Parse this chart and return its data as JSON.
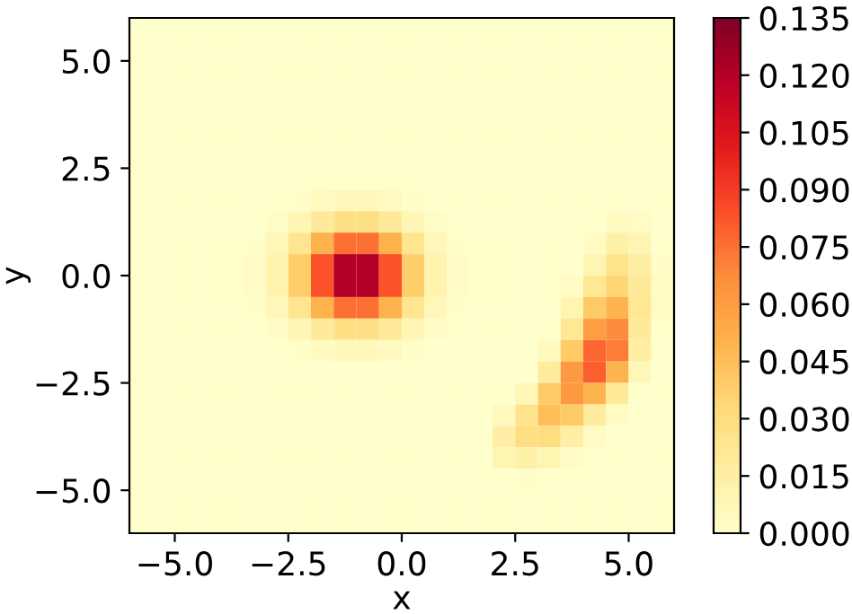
{
  "chart_data": {
    "type": "heatmap",
    "xlabel": "x",
    "ylabel": "y",
    "xlim": [
      -6,
      6
    ],
    "ylim": [
      -6,
      6
    ],
    "xticks": [
      {
        "value": -5,
        "label": "−5.0"
      },
      {
        "value": -2.5,
        "label": "−2.5"
      },
      {
        "value": 0,
        "label": "0.0"
      },
      {
        "value": 2.5,
        "label": "2.5"
      },
      {
        "value": 5,
        "label": "5.0"
      }
    ],
    "yticks": [
      {
        "value": -5,
        "label": "−5.0"
      },
      {
        "value": -2.5,
        "label": "−2.5"
      },
      {
        "value": 0,
        "label": "0.0"
      },
      {
        "value": 2.5,
        "label": "2.5"
      },
      {
        "value": 5,
        "label": "5.0"
      }
    ],
    "clim": [
      0,
      0.135
    ],
    "cticks": [
      {
        "value": 0,
        "label": "0.000"
      },
      {
        "value": 0.015,
        "label": "0.015"
      },
      {
        "value": 0.03,
        "label": "0.030"
      },
      {
        "value": 0.045,
        "label": "0.045"
      },
      {
        "value": 0.06,
        "label": "0.060"
      },
      {
        "value": 0.075,
        "label": "0.075"
      },
      {
        "value": 0.09,
        "label": "0.090"
      },
      {
        "value": 0.105,
        "label": "0.105"
      },
      {
        "value": 0.12,
        "label": "0.120"
      },
      {
        "value": 0.135,
        "label": "0.135"
      }
    ],
    "cells": [
      [
        0,
        0,
        0,
        0,
        0,
        0,
        0,
        0,
        0,
        0,
        0,
        0,
        0,
        0,
        0,
        0,
        0,
        0,
        0,
        0,
        0,
        0,
        0,
        0
      ],
      [
        0,
        0,
        0,
        0,
        0,
        0,
        0,
        0,
        0,
        0,
        0,
        0,
        0,
        0,
        0,
        0,
        0,
        0,
        0,
        0,
        0,
        0,
        0,
        0
      ],
      [
        0,
        0,
        0,
        0,
        0,
        0,
        0,
        0,
        0,
        0,
        0,
        0,
        0,
        0,
        0,
        0,
        0,
        0,
        0,
        0,
        0,
        0,
        0,
        0
      ],
      [
        0,
        0,
        0,
        0,
        0,
        0,
        0,
        0,
        0,
        0,
        0,
        0,
        0,
        0,
        0,
        0,
        0,
        0,
        0,
        0,
        0,
        0,
        0,
        0
      ],
      [
        0,
        0,
        0,
        0,
        0,
        0,
        0,
        0,
        0,
        0,
        0,
        0,
        0,
        0,
        0,
        0,
        0,
        0,
        0,
        0,
        0,
        0,
        0,
        0
      ],
      [
        0,
        0,
        0,
        0,
        0,
        0,
        0,
        0,
        0,
        0,
        0,
        0,
        0,
        0,
        0,
        0,
        0,
        0,
        0,
        0,
        0,
        0,
        0,
        0
      ],
      [
        0,
        0,
        0,
        0,
        0,
        0,
        0,
        0,
        0,
        0,
        0,
        0,
        0,
        0,
        0,
        0,
        0,
        0,
        0,
        0,
        0,
        0,
        0,
        0
      ],
      [
        0,
        0,
        0,
        0,
        0,
        0,
        0,
        0,
        0,
        0,
        0,
        0,
        0,
        0,
        0,
        0,
        0,
        0,
        0,
        0,
        0,
        0,
        0,
        0
      ],
      [
        0,
        0,
        0,
        0,
        0,
        0,
        0,
        0.002,
        0.005,
        0.007,
        0.007,
        0.005,
        0.002,
        0,
        0,
        0,
        0,
        0,
        0,
        0,
        0,
        0,
        0,
        0
      ],
      [
        0,
        0,
        0,
        0,
        0,
        0,
        0.003,
        0.009,
        0.019,
        0.028,
        0.028,
        0.019,
        0.009,
        0.003,
        0,
        0,
        0,
        0,
        0,
        0,
        0,
        0.005,
        0.004,
        0
      ],
      [
        0,
        0,
        0,
        0,
        0,
        0.002,
        0.008,
        0.024,
        0.051,
        0.075,
        0.075,
        0.051,
        0.024,
        0.008,
        0.002,
        0,
        0,
        0,
        0,
        0,
        0.004,
        0.014,
        0.01,
        0
      ],
      [
        0,
        0,
        0,
        0,
        0,
        0.003,
        0.012,
        0.039,
        0.083,
        0.121,
        0.121,
        0.083,
        0.039,
        0.012,
        0.003,
        0,
        0,
        0,
        0,
        0,
        0.01,
        0.025,
        0.016,
        0.003
      ],
      [
        0,
        0,
        0,
        0,
        0,
        0.003,
        0.012,
        0.039,
        0.083,
        0.121,
        0.121,
        0.083,
        0.039,
        0.012,
        0.003,
        0,
        0,
        0,
        0,
        0.004,
        0.022,
        0.035,
        0.02,
        0.004
      ],
      [
        0,
        0,
        0,
        0,
        0,
        0.002,
        0.008,
        0.024,
        0.051,
        0.075,
        0.075,
        0.051,
        0.024,
        0.008,
        0.002,
        0,
        0,
        0,
        0,
        0.01,
        0.04,
        0.05,
        0.022,
        0.004
      ],
      [
        0,
        0,
        0,
        0,
        0,
        0,
        0.003,
        0.009,
        0.019,
        0.028,
        0.028,
        0.019,
        0.009,
        0.003,
        0,
        0,
        0,
        0,
        0,
        0.022,
        0.06,
        0.068,
        0.02,
        0
      ],
      [
        0,
        0,
        0,
        0,
        0,
        0,
        0,
        0.002,
        0.005,
        0.007,
        0.007,
        0.005,
        0.002,
        0,
        0,
        0,
        0,
        0,
        0.006,
        0.04,
        0.078,
        0.072,
        0.016,
        0
      ],
      [
        0,
        0,
        0,
        0,
        0,
        0,
        0,
        0,
        0,
        0,
        0,
        0,
        0,
        0,
        0,
        0,
        0,
        0,
        0.018,
        0.062,
        0.08,
        0.05,
        0.008,
        0
      ],
      [
        0,
        0,
        0,
        0,
        0,
        0,
        0,
        0,
        0,
        0,
        0,
        0,
        0,
        0,
        0,
        0,
        0,
        0.008,
        0.04,
        0.062,
        0.05,
        0.02,
        0,
        0
      ],
      [
        0,
        0,
        0,
        0,
        0,
        0,
        0,
        0,
        0,
        0,
        0,
        0,
        0,
        0,
        0,
        0,
        0.006,
        0.025,
        0.045,
        0.04,
        0.018,
        0.004,
        0,
        0
      ],
      [
        0,
        0,
        0,
        0,
        0,
        0,
        0,
        0,
        0,
        0,
        0,
        0,
        0,
        0,
        0,
        0,
        0.016,
        0.03,
        0.03,
        0.016,
        0.004,
        0,
        0,
        0
      ],
      [
        0,
        0,
        0,
        0,
        0,
        0,
        0,
        0,
        0,
        0,
        0,
        0,
        0,
        0,
        0,
        0,
        0.01,
        0.014,
        0.01,
        0.003,
        0,
        0,
        0,
        0
      ],
      [
        0,
        0,
        0,
        0,
        0,
        0,
        0,
        0,
        0,
        0,
        0,
        0,
        0,
        0,
        0,
        0,
        0,
        0.002,
        0,
        0,
        0,
        0,
        0,
        0
      ],
      [
        0,
        0,
        0,
        0,
        0,
        0,
        0,
        0,
        0,
        0,
        0,
        0,
        0,
        0,
        0,
        0,
        0,
        0,
        0,
        0,
        0,
        0,
        0,
        0
      ],
      [
        0,
        0,
        0,
        0,
        0,
        0,
        0,
        0,
        0,
        0,
        0,
        0,
        0,
        0,
        0,
        0,
        0,
        0,
        0,
        0,
        0,
        0,
        0,
        0
      ]
    ]
  }
}
